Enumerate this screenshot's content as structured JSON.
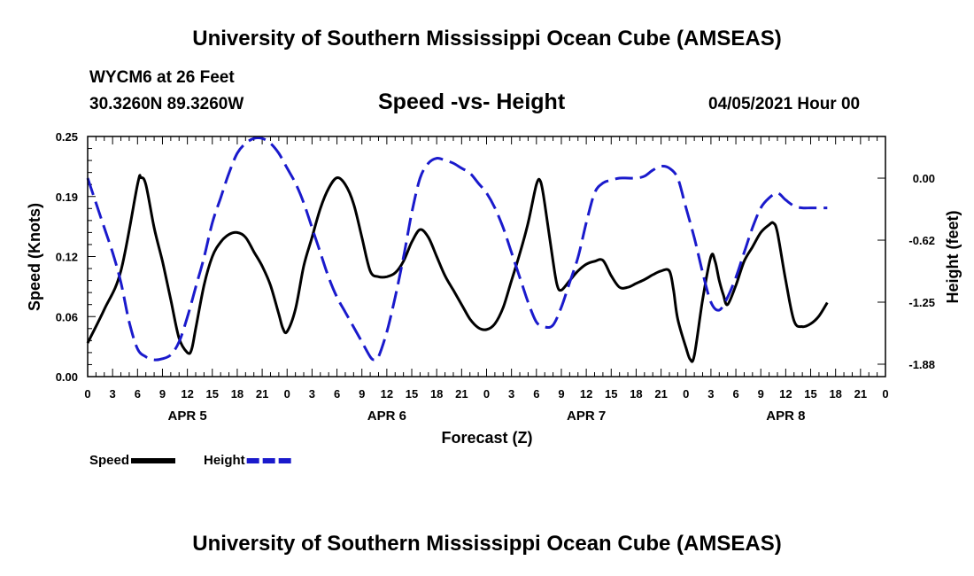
{
  "header": {
    "title": "University of Southern Mississippi Ocean Cube (AMSEAS)",
    "station": "WYCM6 at 26 Feet",
    "coords": "30.3260N  89.3260W",
    "subtitle": "Speed -vs- Height",
    "datetime": "04/05/2021 Hour 00"
  },
  "footer": {
    "title": "University of Southern Mississippi Ocean Cube (AMSEAS)"
  },
  "colors": {
    "speed": "#000000",
    "height": "#1a1acc"
  },
  "chart_data": {
    "type": "line",
    "xlabel": "Forecast (Z)",
    "ylabel": "Speed (Knots)",
    "ylabel_right": "Height (feet)",
    "x_range_hours": [
      0,
      96
    ],
    "y_left": {
      "range": [
        0,
        0.25
      ],
      "ticks": [
        "0.00",
        "0.06",
        "0.12",
        "0.19",
        "0.25"
      ],
      "tick_values": [
        0,
        0.0625,
        0.125,
        0.1875,
        0.25
      ]
    },
    "y_right": {
      "range": [
        -2.0,
        0.42
      ],
      "ticks": [
        "0.00",
        "-0.62",
        "-1.25",
        "-1.88"
      ],
      "tick_values": [
        0,
        -0.625,
        -1.25,
        -1.875
      ]
    },
    "x_tick_labels": [
      "0",
      "3",
      "6",
      "9",
      "12",
      "15",
      "18",
      "21",
      "0",
      "3",
      "6",
      "9",
      "12",
      "15",
      "18",
      "21",
      "0",
      "3",
      "6",
      "9",
      "12",
      "15",
      "18",
      "21",
      "0",
      "3",
      "6",
      "9",
      "12",
      "15",
      "18",
      "21",
      "0"
    ],
    "day_labels": [
      {
        "label": "APR 5",
        "hour": 12
      },
      {
        "label": "APR 6",
        "hour": 36
      },
      {
        "label": "APR 7",
        "hour": 60
      },
      {
        "label": "APR 8",
        "hour": 84
      }
    ],
    "series": [
      {
        "name": "Speed",
        "axis": "left",
        "style": "solid",
        "points": [
          [
            0,
            0.035
          ],
          [
            2,
            0.07
          ],
          [
            4,
            0.11
          ],
          [
            6,
            0.2
          ],
          [
            6.4,
            0.207
          ],
          [
            7,
            0.2
          ],
          [
            8,
            0.155
          ],
          [
            9,
            0.12
          ],
          [
            10,
            0.08
          ],
          [
            11,
            0.04
          ],
          [
            12,
            0.025
          ],
          [
            12.5,
            0.028
          ],
          [
            13,
            0.05
          ],
          [
            14,
            0.095
          ],
          [
            15,
            0.125
          ],
          [
            16,
            0.14
          ],
          [
            17,
            0.148
          ],
          [
            18,
            0.15
          ],
          [
            19,
            0.145
          ],
          [
            20,
            0.13
          ],
          [
            21,
            0.115
          ],
          [
            22,
            0.095
          ],
          [
            23,
            0.065
          ],
          [
            23.5,
            0.05
          ],
          [
            24,
            0.047
          ],
          [
            25,
            0.07
          ],
          [
            26,
            0.115
          ],
          [
            27,
            0.145
          ],
          [
            28,
            0.175
          ],
          [
            29,
            0.196
          ],
          [
            30,
            0.207
          ],
          [
            31,
            0.2
          ],
          [
            32,
            0.18
          ],
          [
            33,
            0.145
          ],
          [
            34,
            0.11
          ],
          [
            35,
            0.104
          ],
          [
            36,
            0.104
          ],
          [
            37,
            0.108
          ],
          [
            38,
            0.12
          ],
          [
            39,
            0.14
          ],
          [
            40,
            0.153
          ],
          [
            41,
            0.145
          ],
          [
            42,
            0.125
          ],
          [
            43,
            0.105
          ],
          [
            44,
            0.09
          ],
          [
            45,
            0.075
          ],
          [
            46,
            0.06
          ],
          [
            47,
            0.051
          ],
          [
            48,
            0.049
          ],
          [
            49,
            0.055
          ],
          [
            50,
            0.072
          ],
          [
            51,
            0.1
          ],
          [
            52,
            0.128
          ],
          [
            53,
            0.16
          ],
          [
            54,
            0.2
          ],
          [
            54.5,
            0.203
          ],
          [
            55,
            0.18
          ],
          [
            56,
            0.12
          ],
          [
            56.5,
            0.095
          ],
          [
            57,
            0.09
          ],
          [
            58,
            0.1
          ],
          [
            59,
            0.11
          ],
          [
            60,
            0.117
          ],
          [
            61,
            0.12
          ],
          [
            62,
            0.121
          ],
          [
            63,
            0.105
          ],
          [
            64,
            0.093
          ],
          [
            65,
            0.093
          ],
          [
            66,
            0.097
          ],
          [
            67,
            0.101
          ],
          [
            68,
            0.106
          ],
          [
            69,
            0.11
          ],
          [
            70,
            0.11
          ],
          [
            70.5,
            0.09
          ],
          [
            71,
            0.06
          ],
          [
            72,
            0.03
          ],
          [
            72.5,
            0.018
          ],
          [
            73,
            0.022
          ],
          [
            74,
            0.08
          ],
          [
            75,
            0.125
          ],
          [
            75.5,
            0.12
          ],
          [
            76,
            0.1
          ],
          [
            76.5,
            0.085
          ],
          [
            77,
            0.075
          ],
          [
            78,
            0.095
          ],
          [
            79,
            0.12
          ],
          [
            80,
            0.135
          ],
          [
            81,
            0.15
          ],
          [
            82,
            0.158
          ],
          [
            82.5,
            0.16
          ],
          [
            83,
            0.15
          ],
          [
            84,
            0.1
          ],
          [
            85,
            0.058
          ],
          [
            86,
            0.052
          ],
          [
            87,
            0.055
          ],
          [
            88,
            0.063
          ],
          [
            89,
            0.077
          ]
        ]
      },
      {
        "name": "Height",
        "axis": "right",
        "style": "dashed",
        "points": [
          [
            0,
            0.0
          ],
          [
            1,
            -0.25
          ],
          [
            2,
            -0.5
          ],
          [
            3,
            -0.75
          ],
          [
            4,
            -1.05
          ],
          [
            5,
            -1.45
          ],
          [
            6,
            -1.72
          ],
          [
            7,
            -1.8
          ],
          [
            8,
            -1.83
          ],
          [
            9,
            -1.82
          ],
          [
            10,
            -1.78
          ],
          [
            11,
            -1.65
          ],
          [
            12,
            -1.4
          ],
          [
            13,
            -1.1
          ],
          [
            14,
            -0.8
          ],
          [
            15,
            -0.45
          ],
          [
            16,
            -0.2
          ],
          [
            17,
            0.05
          ],
          [
            18,
            0.25
          ],
          [
            19,
            0.35
          ],
          [
            20,
            0.4
          ],
          [
            21,
            0.4
          ],
          [
            22,
            0.35
          ],
          [
            23,
            0.25
          ],
          [
            24,
            0.1
          ],
          [
            25,
            -0.05
          ],
          [
            26,
            -0.25
          ],
          [
            27,
            -0.5
          ],
          [
            28,
            -0.75
          ],
          [
            29,
            -1.0
          ],
          [
            30,
            -1.2
          ],
          [
            31,
            -1.35
          ],
          [
            32,
            -1.5
          ],
          [
            33,
            -1.65
          ],
          [
            34,
            -1.8
          ],
          [
            34.5,
            -1.83
          ],
          [
            35,
            -1.8
          ],
          [
            36,
            -1.55
          ],
          [
            37,
            -1.2
          ],
          [
            38,
            -0.8
          ],
          [
            39,
            -0.35
          ],
          [
            40,
            0.0
          ],
          [
            41,
            0.15
          ],
          [
            42,
            0.2
          ],
          [
            43,
            0.18
          ],
          [
            44,
            0.15
          ],
          [
            45,
            0.1
          ],
          [
            46,
            0.05
          ],
          [
            47,
            -0.05
          ],
          [
            48,
            -0.15
          ],
          [
            49,
            -0.3
          ],
          [
            50,
            -0.5
          ],
          [
            51,
            -0.75
          ],
          [
            52,
            -1.0
          ],
          [
            53,
            -1.25
          ],
          [
            54,
            -1.45
          ],
          [
            55,
            -1.5
          ],
          [
            56,
            -1.48
          ],
          [
            57,
            -1.3
          ],
          [
            58,
            -1.05
          ],
          [
            59,
            -0.8
          ],
          [
            60,
            -0.45
          ],
          [
            61,
            -0.15
          ],
          [
            62,
            -0.05
          ],
          [
            63,
            -0.02
          ],
          [
            64,
            0.0
          ],
          [
            65,
            0.0
          ],
          [
            66,
            0.0
          ],
          [
            67,
            0.02
          ],
          [
            68,
            0.08
          ],
          [
            69,
            0.12
          ],
          [
            70,
            0.1
          ],
          [
            71,
            0.0
          ],
          [
            72,
            -0.3
          ],
          [
            73,
            -0.6
          ],
          [
            74,
            -0.95
          ],
          [
            75,
            -1.25
          ],
          [
            76,
            -1.33
          ],
          [
            77,
            -1.2
          ],
          [
            78,
            -1.0
          ],
          [
            79,
            -0.75
          ],
          [
            80,
            -0.5
          ],
          [
            81,
            -0.3
          ],
          [
            82,
            -0.2
          ],
          [
            83,
            -0.15
          ],
          [
            84,
            -0.22
          ],
          [
            85,
            -0.28
          ],
          [
            86,
            -0.3
          ],
          [
            87,
            -0.3
          ],
          [
            88,
            -0.3
          ],
          [
            89,
            -0.3
          ]
        ]
      }
    ],
    "legend": [
      {
        "label": "Speed",
        "style": "solid"
      },
      {
        "label": "Height",
        "style": "dashed"
      }
    ],
    "legend_position": "bottom-left",
    "grid": false
  }
}
